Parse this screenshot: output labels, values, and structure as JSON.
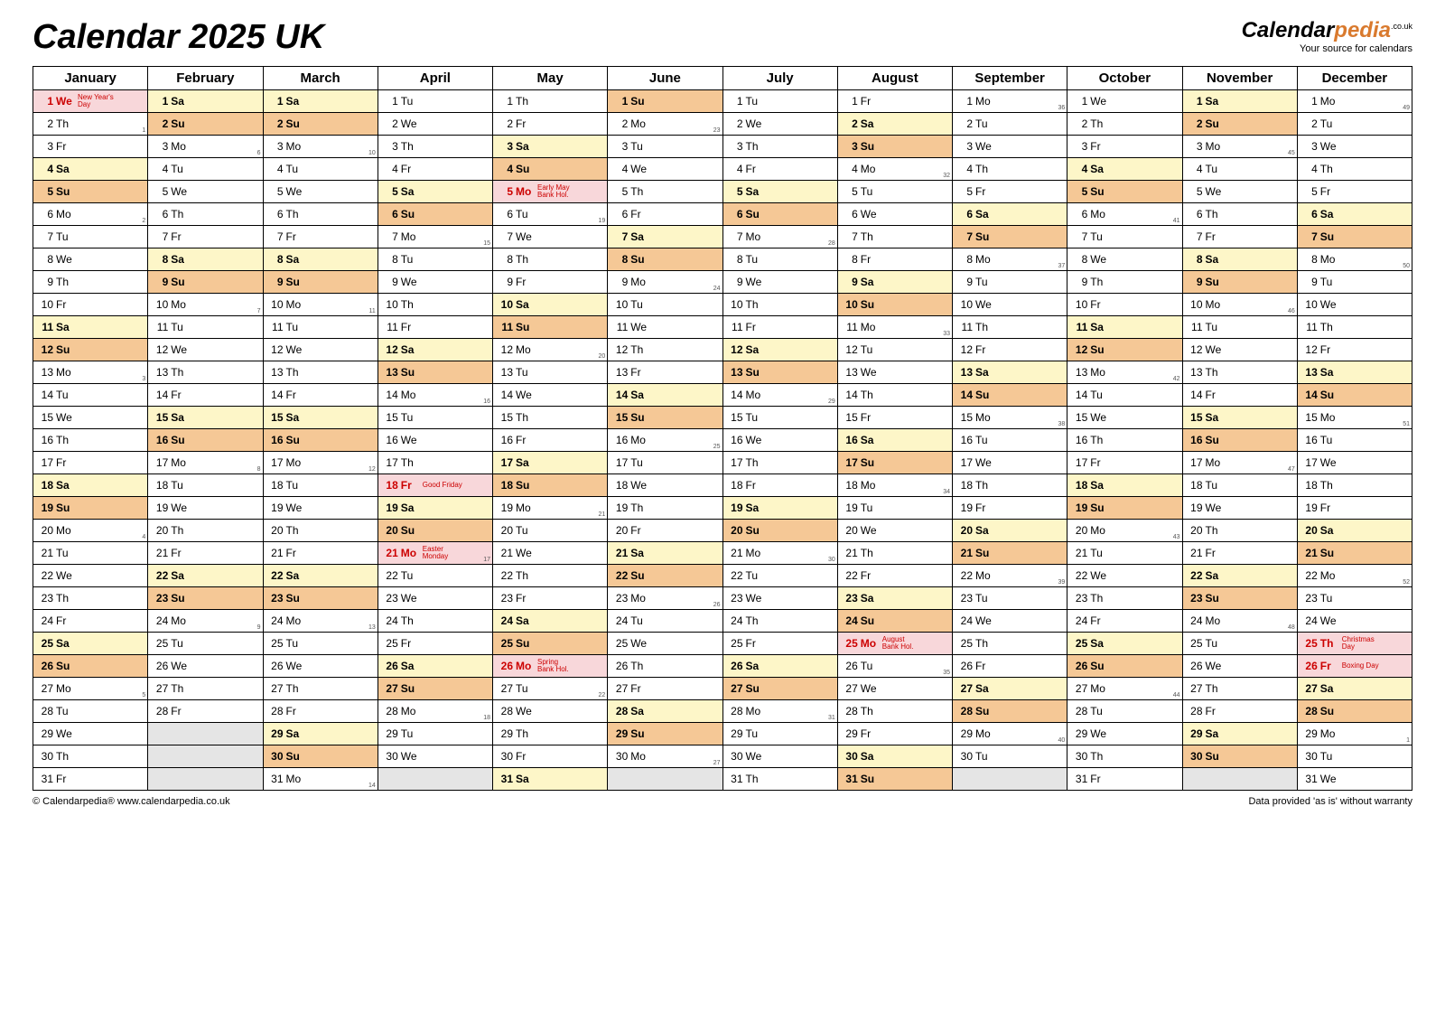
{
  "title": "Calendar 2025 UK",
  "logo": {
    "brand1": "Calendar",
    "brand2": "pedia",
    "tld": ".co.uk",
    "tagline": "Your source for calendars"
  },
  "footer": {
    "left": "© Calendarpedia®   www.calendarpedia.co.uk",
    "right": "Data provided 'as is' without warranty"
  },
  "colors": {
    "saturday": "#fdf6c8",
    "sunday": "#f5c896",
    "holiday": "#f8d7da",
    "empty": "#e5e5e5",
    "border": "#000000"
  },
  "dayAbbr": [
    "Mo",
    "Tu",
    "We",
    "Th",
    "Fr",
    "Sa",
    "Su"
  ],
  "months": [
    {
      "name": "January",
      "days": 31,
      "startDow": 2
    },
    {
      "name": "February",
      "days": 28,
      "startDow": 5
    },
    {
      "name": "March",
      "days": 31,
      "startDow": 5
    },
    {
      "name": "April",
      "days": 30,
      "startDow": 1
    },
    {
      "name": "May",
      "days": 31,
      "startDow": 3
    },
    {
      "name": "June",
      "days": 30,
      "startDow": 6
    },
    {
      "name": "July",
      "days": 31,
      "startDow": 1
    },
    {
      "name": "August",
      "days": 31,
      "startDow": 4
    },
    {
      "name": "September",
      "days": 30,
      "startDow": 0
    },
    {
      "name": "October",
      "days": 31,
      "startDow": 2
    },
    {
      "name": "November",
      "days": 30,
      "startDow": 5
    },
    {
      "name": "December",
      "days": 31,
      "startDow": 0
    }
  ],
  "holidays": [
    {
      "month": 0,
      "day": 1,
      "label": "New Year's\nDay"
    },
    {
      "month": 3,
      "day": 18,
      "label": "Good Friday"
    },
    {
      "month": 3,
      "day": 21,
      "label": "Easter\nMonday"
    },
    {
      "month": 4,
      "day": 5,
      "label": "Early May\nBank Hol."
    },
    {
      "month": 4,
      "day": 26,
      "label": "Spring\nBank Hol."
    },
    {
      "month": 7,
      "day": 25,
      "label": "August\nBank Hol."
    },
    {
      "month": 11,
      "day": 25,
      "label": "Christmas\nDay"
    },
    {
      "month": 11,
      "day": 26,
      "label": "Boxing Day"
    }
  ],
  "weekNumbers": [
    {
      "month": 0,
      "day": 2,
      "wk": 1
    },
    {
      "month": 0,
      "day": 6,
      "wk": 2
    },
    {
      "month": 0,
      "day": 13,
      "wk": 3
    },
    {
      "month": 0,
      "day": 20,
      "wk": 4
    },
    {
      "month": 0,
      "day": 27,
      "wk": 5
    },
    {
      "month": 1,
      "day": 3,
      "wk": 6
    },
    {
      "month": 1,
      "day": 10,
      "wk": 7
    },
    {
      "month": 1,
      "day": 17,
      "wk": 8
    },
    {
      "month": 1,
      "day": 24,
      "wk": 9
    },
    {
      "month": 2,
      "day": 3,
      "wk": 10
    },
    {
      "month": 2,
      "day": 10,
      "wk": 11
    },
    {
      "month": 2,
      "day": 17,
      "wk": 12
    },
    {
      "month": 2,
      "day": 24,
      "wk": 13
    },
    {
      "month": 2,
      "day": 31,
      "wk": 14
    },
    {
      "month": 3,
      "day": 7,
      "wk": 15
    },
    {
      "month": 3,
      "day": 14,
      "wk": 16
    },
    {
      "month": 3,
      "day": 21,
      "wk": 17
    },
    {
      "month": 3,
      "day": 28,
      "wk": 18
    },
    {
      "month": 4,
      "day": 6,
      "wk": 19
    },
    {
      "month": 4,
      "day": 12,
      "wk": 20
    },
    {
      "month": 4,
      "day": 19,
      "wk": 21
    },
    {
      "month": 4,
      "day": 27,
      "wk": 22
    },
    {
      "month": 5,
      "day": 2,
      "wk": 23
    },
    {
      "month": 5,
      "day": 9,
      "wk": 24
    },
    {
      "month": 5,
      "day": 16,
      "wk": 25
    },
    {
      "month": 5,
      "day": 23,
      "wk": 26
    },
    {
      "month": 5,
      "day": 30,
      "wk": 27
    },
    {
      "month": 6,
      "day": 7,
      "wk": 28
    },
    {
      "month": 6,
      "day": 14,
      "wk": 29
    },
    {
      "month": 6,
      "day": 21,
      "wk": 30
    },
    {
      "month": 6,
      "day": 28,
      "wk": 31
    },
    {
      "month": 7,
      "day": 4,
      "wk": 32
    },
    {
      "month": 7,
      "day": 11,
      "wk": 33
    },
    {
      "month": 7,
      "day": 18,
      "wk": 34
    },
    {
      "month": 7,
      "day": 26,
      "wk": 35
    },
    {
      "month": 8,
      "day": 1,
      "wk": 36
    },
    {
      "month": 8,
      "day": 8,
      "wk": 37
    },
    {
      "month": 8,
      "day": 15,
      "wk": 38
    },
    {
      "month": 8,
      "day": 22,
      "wk": 39
    },
    {
      "month": 8,
      "day": 29,
      "wk": 40
    },
    {
      "month": 9,
      "day": 6,
      "wk": 41
    },
    {
      "month": 9,
      "day": 13,
      "wk": 42
    },
    {
      "month": 9,
      "day": 20,
      "wk": 43
    },
    {
      "month": 9,
      "day": 27,
      "wk": 44
    },
    {
      "month": 10,
      "day": 3,
      "wk": 45
    },
    {
      "month": 10,
      "day": 10,
      "wk": 46
    },
    {
      "month": 10,
      "day": 17,
      "wk": 47
    },
    {
      "month": 10,
      "day": 24,
      "wk": 48
    },
    {
      "month": 11,
      "day": 1,
      "wk": 49
    },
    {
      "month": 11,
      "day": 8,
      "wk": 50
    },
    {
      "month": 11,
      "day": 15,
      "wk": 51
    },
    {
      "month": 11,
      "day": 22,
      "wk": 52
    },
    {
      "month": 11,
      "day": 29,
      "wk": 1
    }
  ]
}
